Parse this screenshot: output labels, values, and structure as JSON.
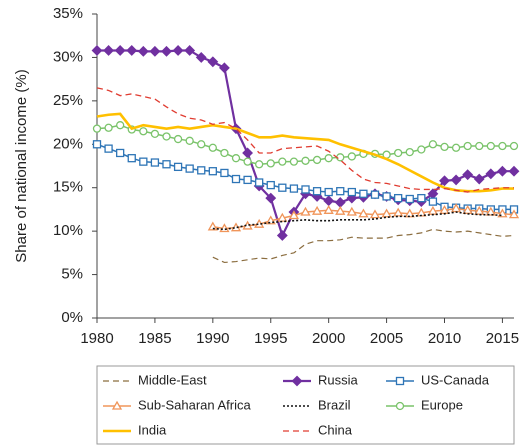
{
  "chart_data": {
    "type": "line",
    "y_label": "Share of national income (%)",
    "x": [
      1980,
      1981,
      1982,
      1983,
      1984,
      1985,
      1986,
      1987,
      1988,
      1989,
      1990,
      1991,
      1992,
      1993,
      1994,
      1995,
      1996,
      1997,
      1998,
      1999,
      2000,
      2001,
      2002,
      2003,
      2004,
      2005,
      2006,
      2007,
      2008,
      2009,
      2010,
      2011,
      2012,
      2013,
      2014,
      2015,
      2016
    ],
    "xlim": [
      1980,
      2016
    ],
    "xticks": [
      1980,
      1985,
      1990,
      1995,
      2000,
      2005,
      2010,
      2015
    ],
    "ylim": [
      0,
      35
    ],
    "yticks": [
      {
        "value": 0,
        "label": "0%"
      },
      {
        "value": 5,
        "label": "5%"
      },
      {
        "value": 10,
        "label": "10%"
      },
      {
        "value": 15,
        "label": "15%"
      },
      {
        "value": 20,
        "label": "20%"
      },
      {
        "value": 25,
        "label": "25%"
      },
      {
        "value": 30,
        "label": "30%"
      },
      {
        "value": 35,
        "label": "35%"
      }
    ],
    "grid": false,
    "legend": "bottom",
    "series": [
      {
        "name": "Middle-East",
        "color": "#8b6d3f",
        "style": "dashed",
        "width": 1.2,
        "values": [
          null,
          null,
          null,
          null,
          null,
          null,
          null,
          null,
          null,
          null,
          7.0,
          6.4,
          6.5,
          6.7,
          6.9,
          6.8,
          7.2,
          7.5,
          8.5,
          8.9,
          8.9,
          9.0,
          9.3,
          9.2,
          9.2,
          9.2,
          9.5,
          9.6,
          9.8,
          10.2,
          10.0,
          9.9,
          10.0,
          9.8,
          9.6,
          9.4,
          9.5
        ]
      },
      {
        "name": "Russia",
        "color": "#7030a0",
        "style": "solid",
        "width": 2.2,
        "marker": "diamond",
        "values": [
          30.8,
          30.8,
          30.8,
          30.8,
          30.7,
          30.7,
          30.7,
          30.8,
          30.8,
          30.0,
          29.5,
          28.8,
          21.8,
          19.0,
          15.2,
          13.8,
          9.5,
          12.2,
          14.3,
          14.0,
          13.5,
          13.3,
          13.8,
          13.9,
          14.3,
          14.0,
          13.6,
          13.5,
          13.4,
          14.3,
          15.8,
          15.9,
          16.5,
          16.0,
          16.6,
          16.9,
          16.9
        ]
      },
      {
        "name": "US-Canada",
        "color": "#2e75b6",
        "style": "solid",
        "width": 1.5,
        "marker": "square",
        "values": [
          20.0,
          19.5,
          19.0,
          18.4,
          18.0,
          17.9,
          17.7,
          17.4,
          17.2,
          17.0,
          16.9,
          16.7,
          16.0,
          15.9,
          15.6,
          15.3,
          15.0,
          14.9,
          14.8,
          14.6,
          14.5,
          14.6,
          14.5,
          14.3,
          14.2,
          14.0,
          13.8,
          13.7,
          13.8,
          13.4,
          12.8,
          12.7,
          12.6,
          12.6,
          12.5,
          12.5,
          12.5
        ]
      },
      {
        "name": "Sub-Saharan Africa",
        "color": "#f0955a",
        "style": "solid",
        "width": 1.5,
        "marker": "triangle",
        "values": [
          null,
          null,
          null,
          null,
          null,
          null,
          null,
          null,
          null,
          null,
          10.5,
          10.3,
          10.4,
          10.6,
          10.8,
          11.2,
          11.5,
          11.8,
          12.2,
          12.3,
          12.4,
          12.3,
          12.2,
          12.0,
          11.9,
          12.0,
          12.1,
          12.0,
          12.1,
          12.3,
          12.4,
          12.6,
          12.4,
          12.3,
          12.2,
          12.0,
          11.9
        ]
      },
      {
        "name": "Brazil",
        "color": "#111111",
        "style": "dotted",
        "width": 1.6,
        "values": [
          null,
          null,
          null,
          null,
          null,
          null,
          null,
          null,
          null,
          null,
          10.3,
          10.2,
          10.4,
          10.7,
          10.8,
          11.0,
          11.1,
          11.2,
          11.3,
          11.2,
          11.2,
          11.3,
          11.3,
          11.3,
          11.4,
          11.6,
          11.7,
          11.7,
          11.8,
          11.9,
          12.0,
          12.2,
          12.0,
          11.9,
          11.9,
          11.8,
          null
        ]
      },
      {
        "name": "Europe",
        "color": "#7ac36a",
        "style": "solid",
        "width": 1.5,
        "marker": "circle",
        "values": [
          21.8,
          21.9,
          22.2,
          21.7,
          21.5,
          21.2,
          20.9,
          20.6,
          20.4,
          20.0,
          19.6,
          19.0,
          18.4,
          18.0,
          17.7,
          17.8,
          18.0,
          18.0,
          18.1,
          18.2,
          18.4,
          18.5,
          18.6,
          18.9,
          18.9,
          18.8,
          19.0,
          19.1,
          19.4,
          20.0,
          19.7,
          19.6,
          19.8,
          19.8,
          19.8,
          19.8,
          19.8
        ]
      },
      {
        "name": "India",
        "color": "#ffc000",
        "style": "solid",
        "width": 2.6,
        "values": [
          23.2,
          23.4,
          23.5,
          21.8,
          22.2,
          22.0,
          21.8,
          22.0,
          21.8,
          22.0,
          22.2,
          22.0,
          21.8,
          21.3,
          20.8,
          20.8,
          21.0,
          20.8,
          20.7,
          20.6,
          20.5,
          20.0,
          19.6,
          19.2,
          18.8,
          18.3,
          17.7,
          17.0,
          16.3,
          15.6,
          15.0,
          14.7,
          14.6,
          14.6,
          14.7,
          14.9,
          14.9
        ]
      },
      {
        "name": "China",
        "color": "#e03c31",
        "style": "dashed",
        "width": 1.3,
        "values": [
          26.5,
          26.2,
          25.6,
          25.8,
          25.5,
          25.2,
          24.3,
          23.5,
          23.0,
          22.8,
          22.3,
          22.5,
          21.8,
          20.5,
          19.0,
          19.0,
          19.5,
          19.6,
          19.7,
          19.8,
          19.2,
          18.2,
          17.0,
          16.0,
          15.6,
          15.5,
          15.2,
          14.9,
          14.8,
          14.8,
          14.9,
          14.7,
          14.5,
          14.8,
          14.9,
          15.0,
          15.0
        ]
      }
    ]
  }
}
